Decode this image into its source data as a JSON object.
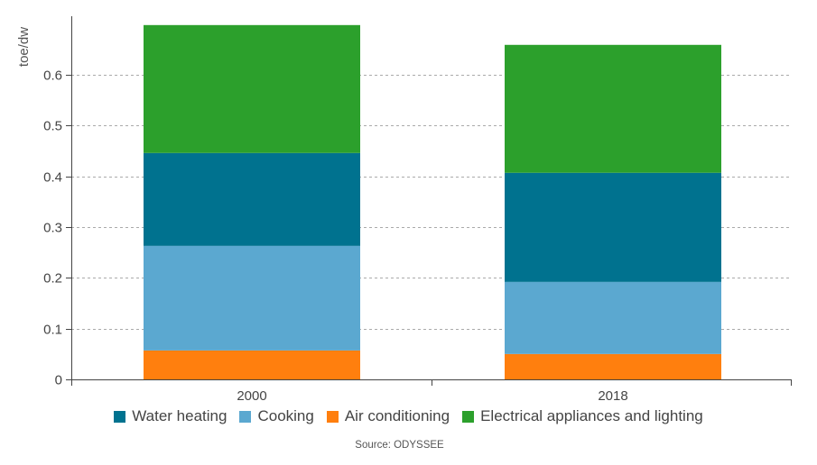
{
  "chart_data": {
    "type": "bar",
    "stacked": true,
    "title": "",
    "xlabel": "",
    "ylabel": "toe/dw",
    "ylim": [
      0,
      0.7
    ],
    "yticks": [
      0,
      0.1,
      0.2,
      0.3,
      0.4,
      0.5,
      0.6
    ],
    "ytick_labels": [
      "0",
      "0.1",
      "0.2",
      "0.3",
      "0.4",
      "0.5",
      "0.6"
    ],
    "grid": true,
    "categories": [
      "2000",
      "2018"
    ],
    "series": [
      {
        "name": "Air conditioning",
        "color": "#ff7f0e",
        "values": [
          0.057,
          0.05
        ]
      },
      {
        "name": "Cooking",
        "color": "#5ba8d0",
        "values": [
          0.206,
          0.142
        ]
      },
      {
        "name": "Water heating",
        "color": "#00728f",
        "values": [
          0.183,
          0.215
        ]
      },
      {
        "name": "Electrical appliances and lighting",
        "color": "#2ca02c",
        "values": [
          0.252,
          0.252
        ]
      }
    ],
    "legend_order": [
      "Water heating",
      "Cooking",
      "Air conditioning",
      "Electrical appliances and lighting"
    ],
    "legend_position": "bottom",
    "source": "Source: ODYSSEE"
  }
}
